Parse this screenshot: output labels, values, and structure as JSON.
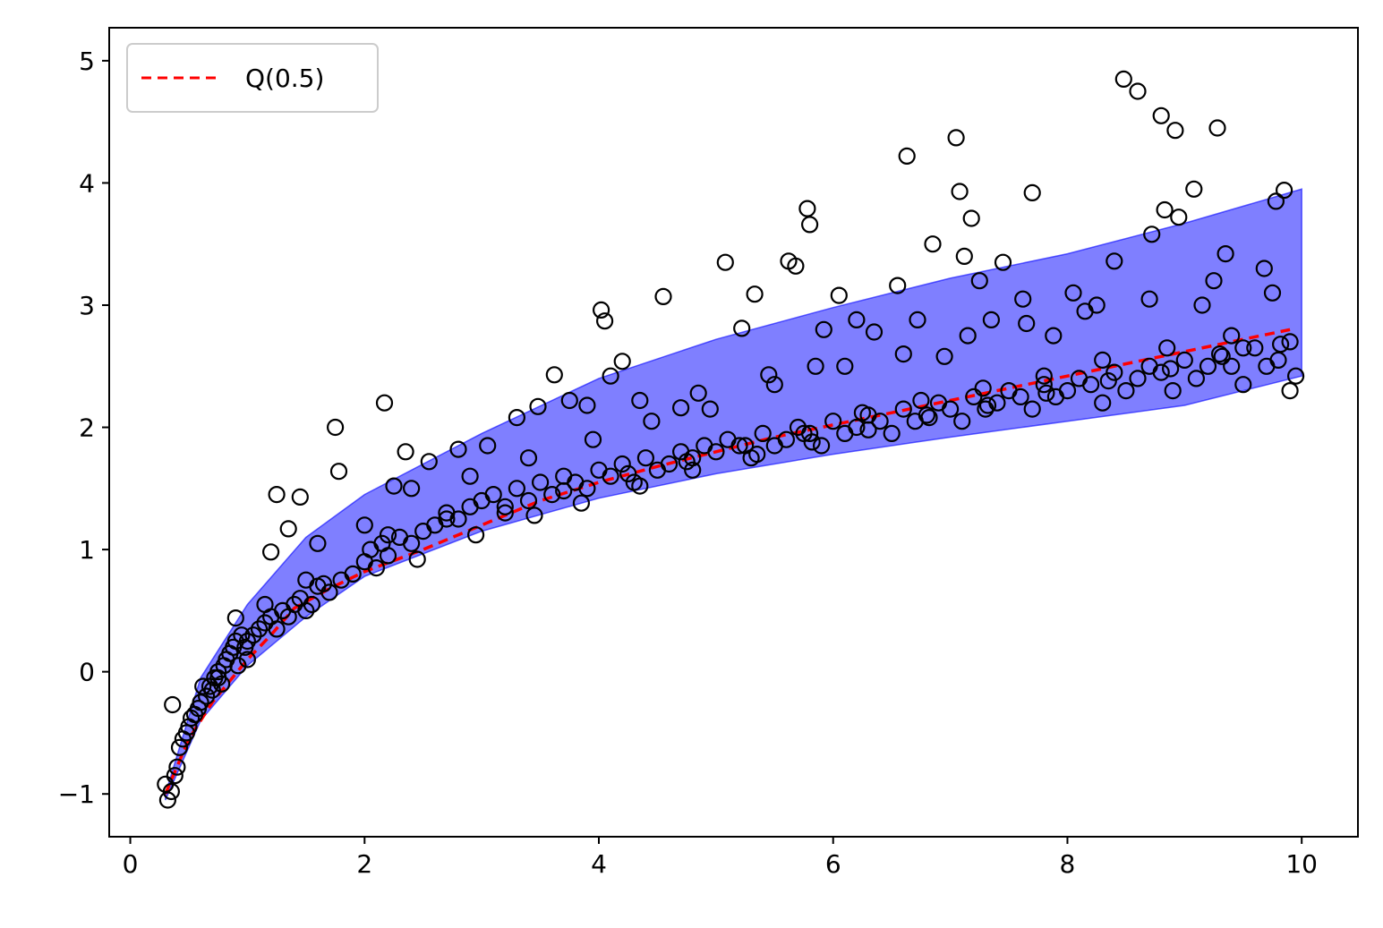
{
  "chart_data": {
    "type": "scatter",
    "title": "",
    "xlabel": "",
    "ylabel": "",
    "xlim": [
      -0.18,
      10.48
    ],
    "ylim": [
      -1.35,
      5.27
    ],
    "x_ticks": [
      0,
      2,
      4,
      6,
      8,
      10
    ],
    "y_ticks": [
      -1,
      0,
      1,
      2,
      3,
      4,
      5
    ],
    "x_tick_labels": [
      "0",
      "2",
      "4",
      "6",
      "8",
      "10"
    ],
    "y_tick_labels": [
      "−1",
      "0",
      "1",
      "2",
      "3",
      "4",
      "5"
    ],
    "legend": {
      "placement": "upper-left",
      "entries": [
        "Q(0.5)"
      ]
    },
    "grid": false,
    "colors": {
      "band_fill": "#0000ff",
      "band_opacity": 0.5,
      "median_line": "#ff0000",
      "points_edge": "#000000"
    },
    "band": {
      "name": "",
      "x": [
        0.3,
        0.6,
        1.0,
        1.5,
        2.0,
        3.0,
        4.0,
        5.0,
        6.0,
        7.0,
        8.0,
        9.0,
        10.0
      ],
      "lower": [
        -1.05,
        -0.4,
        0.05,
        0.45,
        0.78,
        1.15,
        1.42,
        1.62,
        1.78,
        1.92,
        2.05,
        2.18,
        2.42
      ],
      "upper": [
        -1.0,
        -0.05,
        0.55,
        1.1,
        1.45,
        1.95,
        2.4,
        2.72,
        2.98,
        3.22,
        3.42,
        3.67,
        3.95
      ]
    },
    "series": [
      {
        "name": "Q(0.5)",
        "type": "line",
        "style": "dashed",
        "x": [
          0.3,
          0.5,
          0.7,
          1.0,
          1.2,
          1.4,
          1.7,
          2.0,
          2.5,
          3.0,
          3.5,
          4.0,
          4.5,
          5.0,
          5.5,
          6.0,
          6.5,
          7.0,
          7.5,
          8.0,
          8.5,
          9.0,
          9.5,
          9.9
        ],
        "y": [
          -1.0,
          -0.55,
          -0.25,
          0.1,
          0.3,
          0.52,
          0.68,
          0.82,
          1.0,
          1.2,
          1.4,
          1.55,
          1.68,
          1.8,
          1.92,
          2.02,
          2.12,
          2.22,
          2.32,
          2.42,
          2.52,
          2.62,
          2.72,
          2.8
        ]
      },
      {
        "name": "",
        "type": "scatter",
        "marker": "open-circle",
        "x": [
          0.3,
          0.32,
          0.35,
          0.38,
          0.4,
          0.42,
          0.45,
          0.48,
          0.5,
          0.52,
          0.55,
          0.58,
          0.6,
          0.62,
          0.65,
          0.68,
          0.7,
          0.72,
          0.75,
          0.78,
          0.8,
          0.82,
          0.85,
          0.88,
          0.9,
          0.92,
          0.95,
          0.98,
          1.0,
          1.05,
          1.1,
          1.15,
          1.2,
          1.25,
          1.3,
          1.35,
          1.4,
          1.45,
          1.5,
          1.55,
          1.6,
          1.7,
          1.8,
          1.9,
          2.0,
          2.05,
          2.1,
          2.15,
          2.2,
          2.3,
          2.4,
          2.5,
          2.6,
          2.7,
          2.8,
          2.9,
          3.0,
          3.1,
          3.2,
          3.3,
          3.4,
          3.5,
          3.6,
          3.7,
          3.8,
          3.9,
          4.0,
          4.1,
          4.2,
          4.3,
          4.4,
          4.5,
          4.6,
          4.7,
          4.8,
          4.9,
          5.0,
          5.1,
          5.2,
          5.3,
          5.4,
          5.5,
          5.6,
          5.7,
          5.8,
          5.9,
          6.0,
          6.1,
          6.2,
          6.3,
          6.4,
          6.5,
          6.6,
          6.7,
          6.8,
          6.9,
          7.0,
          7.1,
          7.2,
          7.3,
          7.4,
          7.5,
          7.6,
          7.7,
          7.8,
          7.9,
          8.0,
          8.1,
          8.2,
          8.3,
          8.4,
          8.5,
          8.6,
          8.7,
          8.8,
          8.9,
          9.0,
          9.1,
          9.2,
          9.3,
          9.4,
          9.5,
          9.6,
          9.7,
          9.8,
          9.9,
          9.95,
          0.36,
          0.9,
          1.2,
          1.35,
          1.45,
          1.75,
          1.78,
          2.17,
          2.25,
          2.35,
          2.55,
          2.8,
          3.05,
          3.3,
          3.48,
          3.62,
          3.75,
          3.9,
          4.02,
          4.05,
          4.1,
          4.2,
          4.35,
          4.55,
          4.7,
          4.85,
          5.08,
          5.22,
          5.33,
          5.45,
          5.62,
          5.68,
          5.78,
          5.8,
          5.85,
          5.92,
          6.05,
          6.2,
          6.35,
          6.55,
          6.63,
          6.72,
          6.85,
          6.95,
          7.05,
          7.08,
          7.12,
          7.18,
          7.25,
          7.35,
          7.45,
          7.62,
          7.7,
          7.88,
          8.05,
          8.25,
          8.4,
          8.48,
          8.6,
          8.72,
          8.8,
          8.83,
          8.92,
          8.95,
          9.08,
          9.15,
          9.28,
          9.35,
          9.5,
          9.68,
          9.78,
          9.85,
          1.25,
          1.6,
          2.0,
          2.4,
          2.9,
          3.4,
          3.95,
          4.45,
          4.95,
          5.5,
          6.1,
          6.6,
          7.15,
          7.65,
          8.15,
          8.7,
          9.25,
          9.75,
          1.0,
          1.5,
          2.2,
          2.7,
          3.2,
          3.7,
          4.25,
          4.75,
          5.25,
          5.75,
          6.25,
          6.75,
          7.28,
          7.8,
          8.3,
          8.85,
          9.4,
          9.9,
          0.75,
          1.15,
          1.65,
          2.45,
          2.95,
          3.45,
          3.85,
          4.35,
          4.8,
          5.35,
          5.82,
          6.3,
          6.82,
          7.32,
          7.82,
          8.35,
          8.88,
          9.32,
          9.82
        ],
        "y": [
          -0.92,
          -1.05,
          -0.98,
          -0.85,
          -0.78,
          -0.62,
          -0.55,
          -0.5,
          -0.45,
          -0.38,
          -0.35,
          -0.3,
          -0.25,
          -0.12,
          -0.2,
          -0.12,
          -0.15,
          -0.05,
          0.0,
          -0.1,
          0.05,
          0.1,
          0.15,
          0.2,
          0.25,
          0.05,
          0.3,
          0.2,
          0.25,
          0.3,
          0.35,
          0.4,
          0.45,
          0.35,
          0.5,
          0.45,
          0.55,
          0.6,
          0.5,
          0.55,
          0.7,
          0.65,
          0.75,
          0.8,
          0.9,
          1.0,
          0.85,
          1.05,
          0.95,
          1.1,
          1.05,
          1.15,
          1.2,
          1.3,
          1.25,
          1.35,
          1.4,
          1.45,
          1.3,
          1.5,
          1.4,
          1.55,
          1.45,
          1.6,
          1.55,
          1.5,
          1.65,
          1.6,
          1.7,
          1.55,
          1.75,
          1.65,
          1.7,
          1.8,
          1.75,
          1.85,
          1.8,
          1.9,
          1.85,
          1.75,
          1.95,
          1.85,
          1.9,
          2.0,
          1.95,
          1.85,
          2.05,
          1.95,
          2.0,
          2.1,
          2.05,
          1.95,
          2.15,
          2.05,
          2.1,
          2.2,
          2.15,
          2.05,
          2.25,
          2.15,
          2.2,
          2.3,
          2.25,
          2.15,
          2.35,
          2.25,
          2.3,
          2.4,
          2.35,
          2.2,
          2.45,
          2.3,
          2.4,
          2.5,
          2.45,
          2.3,
          2.55,
          2.4,
          2.5,
          2.6,
          2.5,
          2.35,
          2.65,
          2.5,
          2.55,
          2.7,
          2.42,
          -0.27,
          0.44,
          0.98,
          1.17,
          1.43,
          2.0,
          1.64,
          2.2,
          1.52,
          1.8,
          1.72,
          1.82,
          1.85,
          2.08,
          2.17,
          2.43,
          2.22,
          2.18,
          2.96,
          2.87,
          2.42,
          2.54,
          2.22,
          3.07,
          2.16,
          2.28,
          3.35,
          2.81,
          3.09,
          2.43,
          3.36,
          3.32,
          3.79,
          3.66,
          2.5,
          2.8,
          3.08,
          2.88,
          2.78,
          3.16,
          4.22,
          2.88,
          3.5,
          2.58,
          4.37,
          3.93,
          3.4,
          3.71,
          3.2,
          2.88,
          3.35,
          3.05,
          3.92,
          2.75,
          3.1,
          3.0,
          3.36,
          4.85,
          4.75,
          3.58,
          4.55,
          3.78,
          4.43,
          3.72,
          3.95,
          3.0,
          4.45,
          3.42,
          2.65,
          3.3,
          3.85,
          3.94,
          1.45,
          1.05,
          1.2,
          1.5,
          1.6,
          1.75,
          1.9,
          2.05,
          2.15,
          2.35,
          2.5,
          2.6,
          2.75,
          2.85,
          2.95,
          3.05,
          3.2,
          3.1,
          0.1,
          0.75,
          1.12,
          1.25,
          1.35,
          1.48,
          1.62,
          1.72,
          1.85,
          1.95,
          2.12,
          2.22,
          2.32,
          2.42,
          2.55,
          2.65,
          2.75,
          2.3,
          -0.05,
          0.55,
          0.72,
          0.92,
          1.12,
          1.28,
          1.38,
          1.52,
          1.65,
          1.78,
          1.88,
          1.98,
          2.08,
          2.18,
          2.28,
          2.38,
          2.48,
          2.58,
          2.68
        ]
      }
    ]
  }
}
